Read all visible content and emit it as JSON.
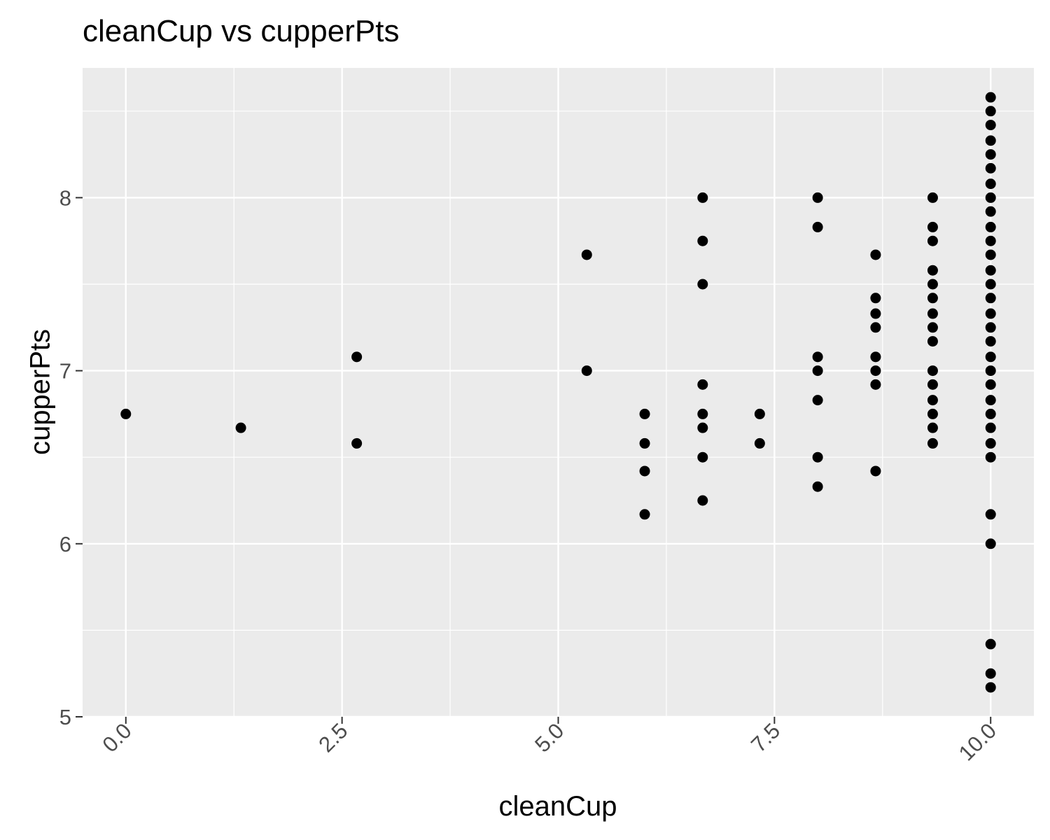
{
  "chart_data": {
    "type": "scatter",
    "title": "cleanCup vs cupperPts",
    "xlabel": "cleanCup",
    "ylabel": "cupperPts",
    "xlim": [
      -0.5,
      10.5
    ],
    "ylim": [
      5.0,
      8.75
    ],
    "x_ticks": [
      0.0,
      2.5,
      5.0,
      7.5,
      10.0
    ],
    "x_tick_labels": [
      "0.0",
      "2.5",
      "5.0",
      "7.5",
      "10.0"
    ],
    "x_tick_rotation": 45,
    "y_ticks": [
      5,
      6,
      7,
      8
    ],
    "y_tick_labels": [
      "5",
      "6",
      "7",
      "8"
    ],
    "grid": true,
    "background": "#ebebeb",
    "grid_color": "#ffffff",
    "point_color": "#000000",
    "points": [
      {
        "x": 0.0,
        "y": 6.75
      },
      {
        "x": 1.33,
        "y": 6.67
      },
      {
        "x": 2.67,
        "y": 7.08
      },
      {
        "x": 2.67,
        "y": 6.58
      },
      {
        "x": 5.33,
        "y": 7.67
      },
      {
        "x": 5.33,
        "y": 7.0
      },
      {
        "x": 6.0,
        "y": 6.75
      },
      {
        "x": 6.0,
        "y": 6.58
      },
      {
        "x": 6.0,
        "y": 6.42
      },
      {
        "x": 6.0,
        "y": 6.17
      },
      {
        "x": 6.67,
        "y": 8.0
      },
      {
        "x": 6.67,
        "y": 7.75
      },
      {
        "x": 6.67,
        "y": 7.5
      },
      {
        "x": 6.67,
        "y": 6.92
      },
      {
        "x": 6.67,
        "y": 6.75
      },
      {
        "x": 6.67,
        "y": 6.67
      },
      {
        "x": 6.67,
        "y": 6.5
      },
      {
        "x": 6.67,
        "y": 6.25
      },
      {
        "x": 7.33,
        "y": 6.75
      },
      {
        "x": 7.33,
        "y": 6.58
      },
      {
        "x": 8.0,
        "y": 8.0
      },
      {
        "x": 8.0,
        "y": 7.83
      },
      {
        "x": 8.0,
        "y": 7.08
      },
      {
        "x": 8.0,
        "y": 7.0
      },
      {
        "x": 8.0,
        "y": 6.83
      },
      {
        "x": 8.0,
        "y": 6.5
      },
      {
        "x": 8.0,
        "y": 6.33
      },
      {
        "x": 8.67,
        "y": 7.67
      },
      {
        "x": 8.67,
        "y": 7.42
      },
      {
        "x": 8.67,
        "y": 7.33
      },
      {
        "x": 8.67,
        "y": 7.25
      },
      {
        "x": 8.67,
        "y": 7.08
      },
      {
        "x": 8.67,
        "y": 7.0
      },
      {
        "x": 8.67,
        "y": 6.92
      },
      {
        "x": 8.67,
        "y": 6.42
      },
      {
        "x": 9.33,
        "y": 8.0
      },
      {
        "x": 9.33,
        "y": 7.83
      },
      {
        "x": 9.33,
        "y": 7.75
      },
      {
        "x": 9.33,
        "y": 7.58
      },
      {
        "x": 9.33,
        "y": 7.5
      },
      {
        "x": 9.33,
        "y": 7.42
      },
      {
        "x": 9.33,
        "y": 7.33
      },
      {
        "x": 9.33,
        "y": 7.25
      },
      {
        "x": 9.33,
        "y": 7.17
      },
      {
        "x": 9.33,
        "y": 7.0
      },
      {
        "x": 9.33,
        "y": 6.92
      },
      {
        "x": 9.33,
        "y": 6.83
      },
      {
        "x": 9.33,
        "y": 6.75
      },
      {
        "x": 9.33,
        "y": 6.67
      },
      {
        "x": 9.33,
        "y": 6.58
      },
      {
        "x": 10.0,
        "y": 8.58
      },
      {
        "x": 10.0,
        "y": 8.5
      },
      {
        "x": 10.0,
        "y": 8.42
      },
      {
        "x": 10.0,
        "y": 8.33
      },
      {
        "x": 10.0,
        "y": 8.25
      },
      {
        "x": 10.0,
        "y": 8.17
      },
      {
        "x": 10.0,
        "y": 8.08
      },
      {
        "x": 10.0,
        "y": 8.0
      },
      {
        "x": 10.0,
        "y": 7.92
      },
      {
        "x": 10.0,
        "y": 7.83
      },
      {
        "x": 10.0,
        "y": 7.75
      },
      {
        "x": 10.0,
        "y": 7.67
      },
      {
        "x": 10.0,
        "y": 7.58
      },
      {
        "x": 10.0,
        "y": 7.5
      },
      {
        "x": 10.0,
        "y": 7.42
      },
      {
        "x": 10.0,
        "y": 7.33
      },
      {
        "x": 10.0,
        "y": 7.25
      },
      {
        "x": 10.0,
        "y": 7.17
      },
      {
        "x": 10.0,
        "y": 7.08
      },
      {
        "x": 10.0,
        "y": 7.0
      },
      {
        "x": 10.0,
        "y": 6.92
      },
      {
        "x": 10.0,
        "y": 6.83
      },
      {
        "x": 10.0,
        "y": 6.75
      },
      {
        "x": 10.0,
        "y": 6.67
      },
      {
        "x": 10.0,
        "y": 6.58
      },
      {
        "x": 10.0,
        "y": 6.5
      },
      {
        "x": 10.0,
        "y": 6.17
      },
      {
        "x": 10.0,
        "y": 6.0
      },
      {
        "x": 10.0,
        "y": 5.42
      },
      {
        "x": 10.0,
        "y": 5.25
      },
      {
        "x": 10.0,
        "y": 5.17
      }
    ]
  }
}
